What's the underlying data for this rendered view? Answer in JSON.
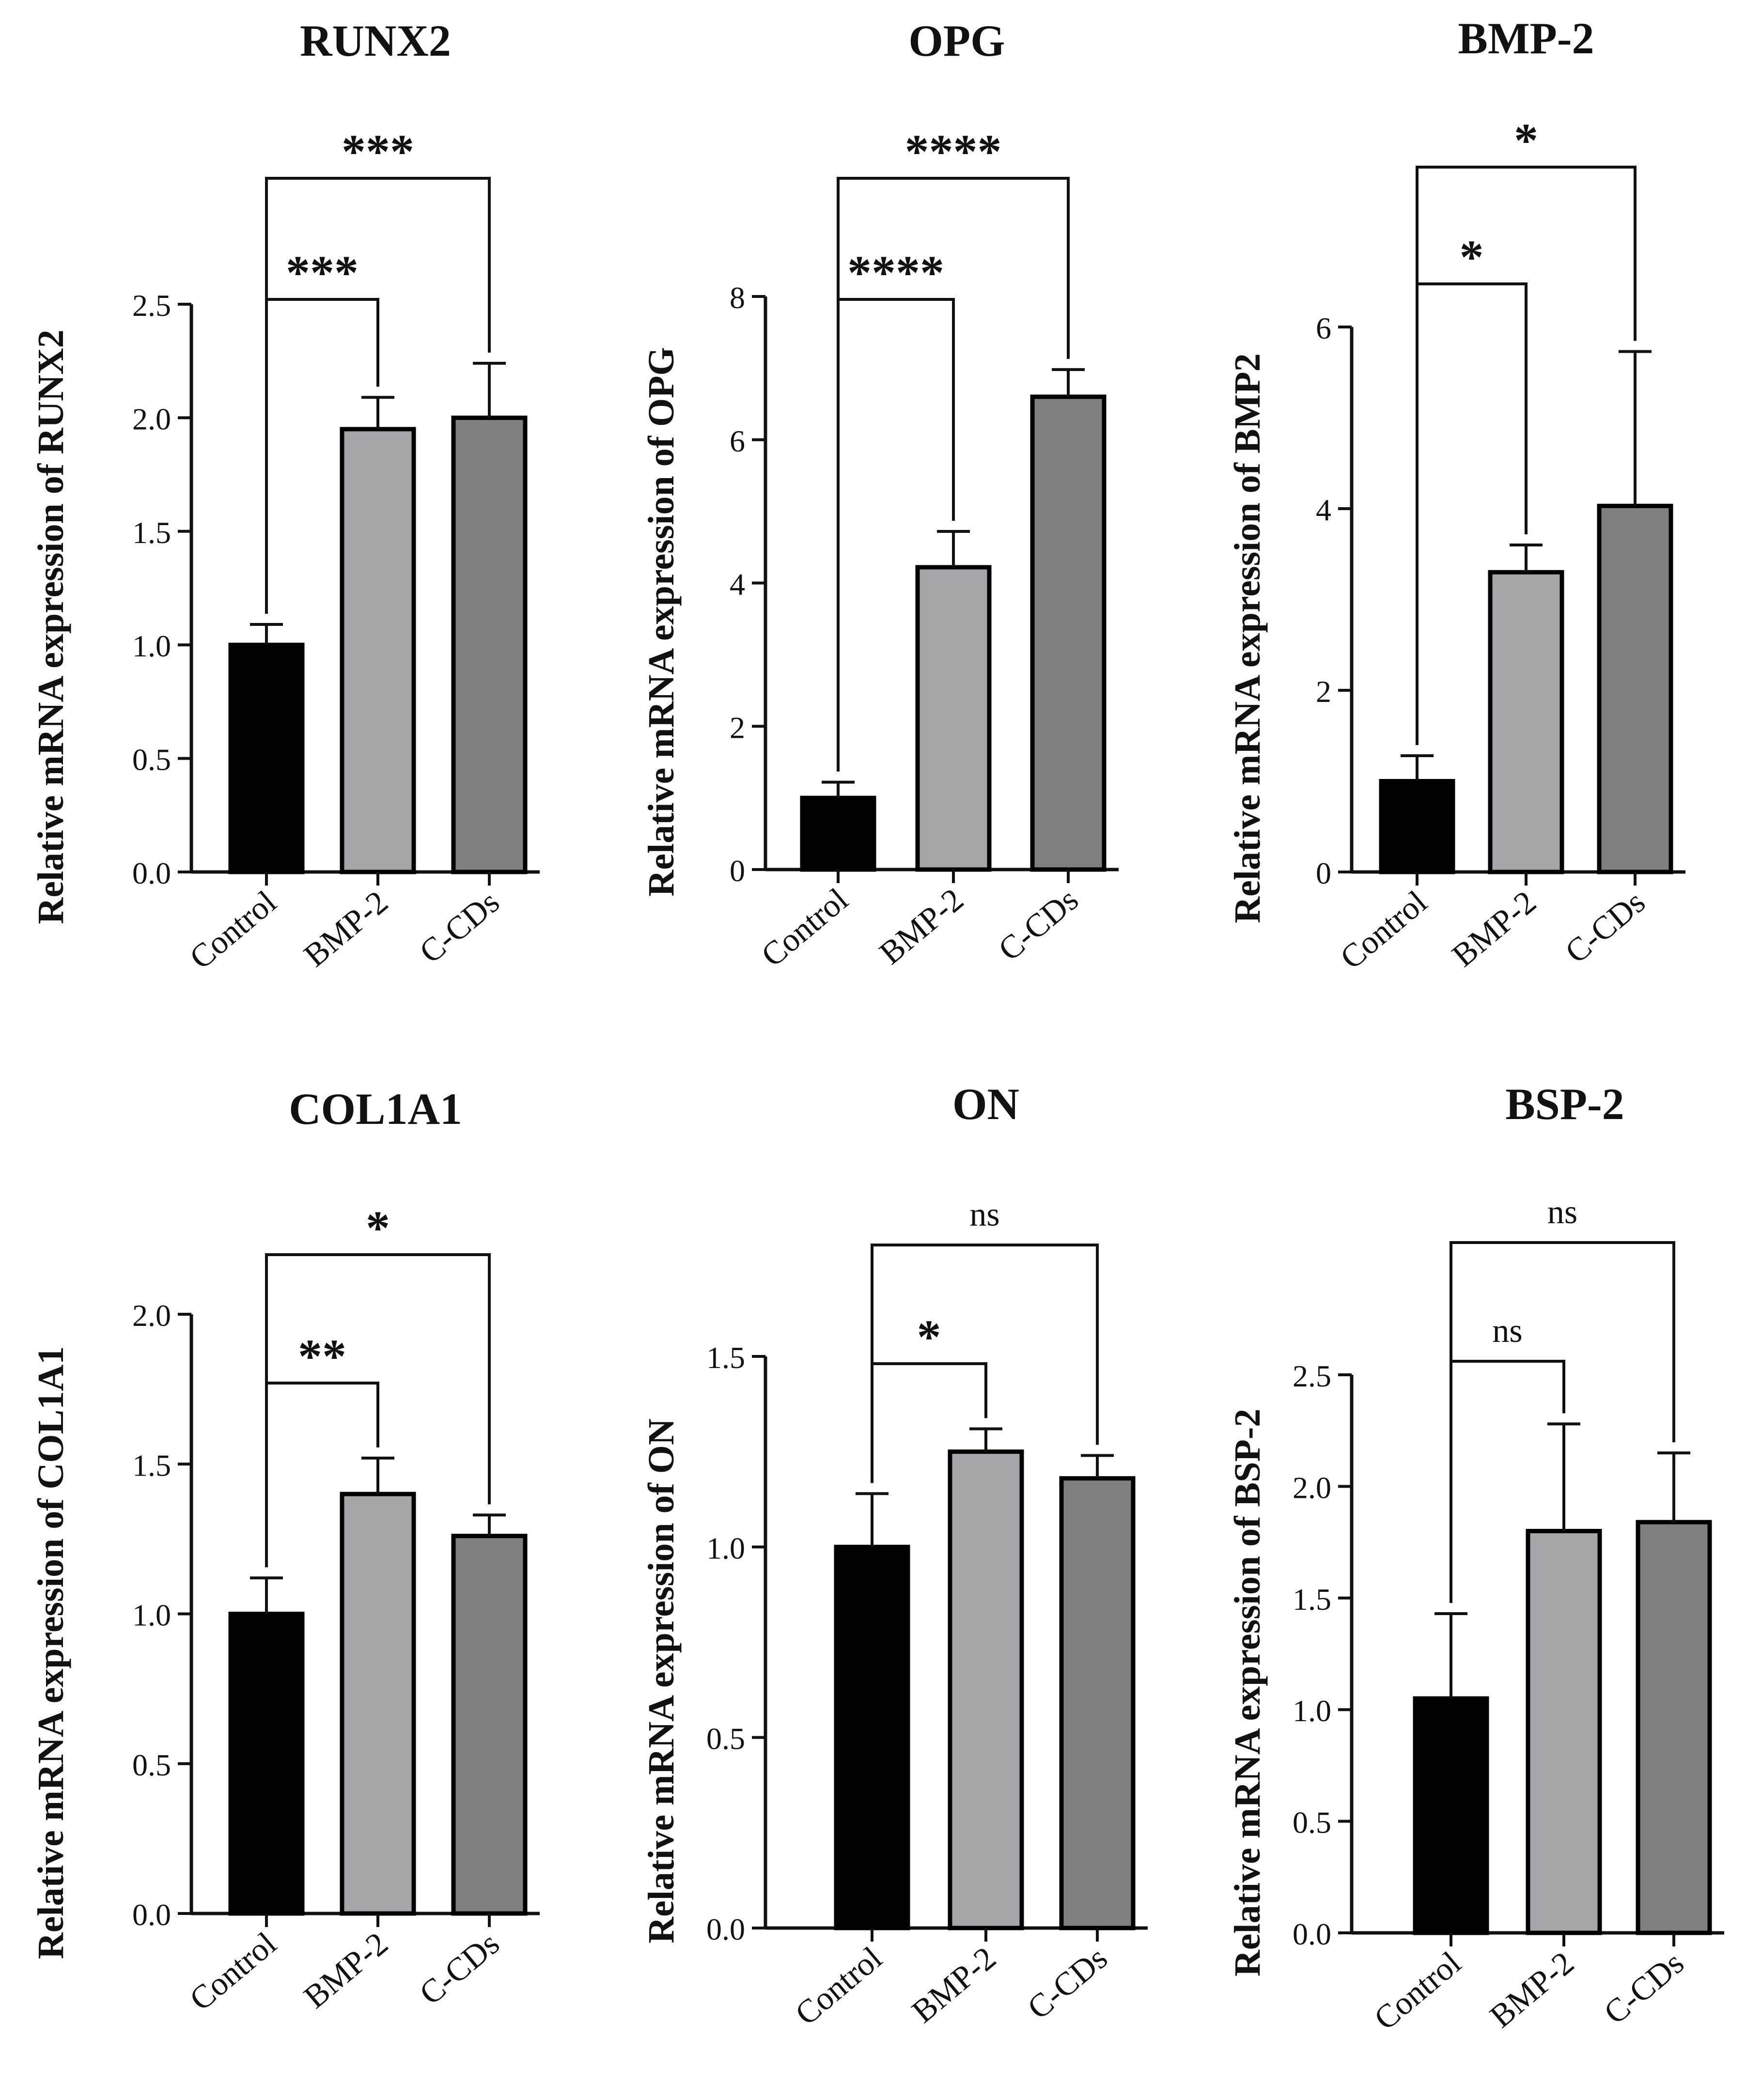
{
  "chart_data": [
    {
      "type": "bar",
      "title": "RUNX2",
      "ylabel": "Relative mRNA expression of RUNX2",
      "categories": [
        "Control",
        "BMP-2",
        "C-CDs"
      ],
      "values": [
        1.0,
        1.95,
        2.0
      ],
      "errors": [
        0.09,
        0.14,
        0.24
      ],
      "ylim": [
        0,
        2.5
      ],
      "yticks": [
        "0.0",
        "0.5",
        "1.0",
        "1.5",
        "2.0",
        "2.5"
      ],
      "significance": [
        {
          "from": 0,
          "to": 1,
          "label": "***"
        },
        {
          "from": 0,
          "to": 2,
          "label": "***"
        }
      ]
    },
    {
      "type": "bar",
      "title": "OPG",
      "ylabel": "Relative mRNA expression of OPG",
      "categories": [
        "Control",
        "BMP-2",
        "C-CDs"
      ],
      "values": [
        1.0,
        4.22,
        6.6
      ],
      "errors": [
        0.22,
        0.5,
        0.38
      ],
      "ylim": [
        0,
        8
      ],
      "yticks": [
        "0",
        "2",
        "4",
        "6",
        "8"
      ],
      "significance": [
        {
          "from": 0,
          "to": 1,
          "label": "****"
        },
        {
          "from": 0,
          "to": 2,
          "label": "****"
        }
      ]
    },
    {
      "type": "bar",
      "title": "BMP-2",
      "ylabel": "Relative mRNA expression of BMP2",
      "categories": [
        "Control",
        "BMP-2",
        "C-CDs"
      ],
      "values": [
        1.0,
        3.3,
        4.03
      ],
      "errors": [
        0.28,
        0.3,
        1.7
      ],
      "ylim": [
        0,
        6
      ],
      "yticks": [
        "0",
        "2",
        "4",
        "6"
      ],
      "significance": [
        {
          "from": 0,
          "to": 1,
          "label": "*"
        },
        {
          "from": 0,
          "to": 2,
          "label": "*"
        }
      ]
    },
    {
      "type": "bar",
      "title": "COL1A1",
      "ylabel": "Relative mRNA expression of COL1A1",
      "categories": [
        "Control",
        "BMP-2",
        "C-CDs"
      ],
      "values": [
        1.0,
        1.4,
        1.26
      ],
      "errors": [
        0.12,
        0.12,
        0.07
      ],
      "ylim": [
        0,
        2.0
      ],
      "yticks": [
        "0.0",
        "0.5",
        "1.0",
        "1.5",
        "2.0"
      ],
      "significance": [
        {
          "from": 0,
          "to": 1,
          "label": "**"
        },
        {
          "from": 0,
          "to": 2,
          "label": "*"
        }
      ]
    },
    {
      "type": "bar",
      "title": "ON",
      "ylabel": "Relative mRNA expression of ON",
      "categories": [
        "Control",
        "BMP-2",
        "C-CDs"
      ],
      "values": [
        1.0,
        1.25,
        1.18
      ],
      "errors": [
        0.14,
        0.06,
        0.06
      ],
      "ylim": [
        0,
        1.5
      ],
      "yticks": [
        "0.0",
        "0.5",
        "1.0",
        "1.5"
      ],
      "significance": [
        {
          "from": 0,
          "to": 1,
          "label": "*"
        },
        {
          "from": 0,
          "to": 2,
          "label": "ns"
        }
      ]
    },
    {
      "type": "bar",
      "title": "BSP-2",
      "ylabel": "Relative mRNA expression of BSP-2",
      "categories": [
        "Control",
        "BMP-2",
        "C-CDs"
      ],
      "values": [
        1.05,
        1.8,
        1.84
      ],
      "errors": [
        0.38,
        0.48,
        0.31
      ],
      "ylim": [
        0,
        2.5
      ],
      "yticks": [
        "0.0",
        "0.5",
        "1.0",
        "1.5",
        "2.0",
        "2.5"
      ],
      "significance": [
        {
          "from": 0,
          "to": 1,
          "label": "ns"
        },
        {
          "from": 0,
          "to": 2,
          "label": "ns"
        }
      ]
    }
  ],
  "colors": {
    "Control": "#000000",
    "BMP-2": "#a6a6a9",
    "C-CDs": "#7f7f7f",
    "axis": "#111111"
  }
}
